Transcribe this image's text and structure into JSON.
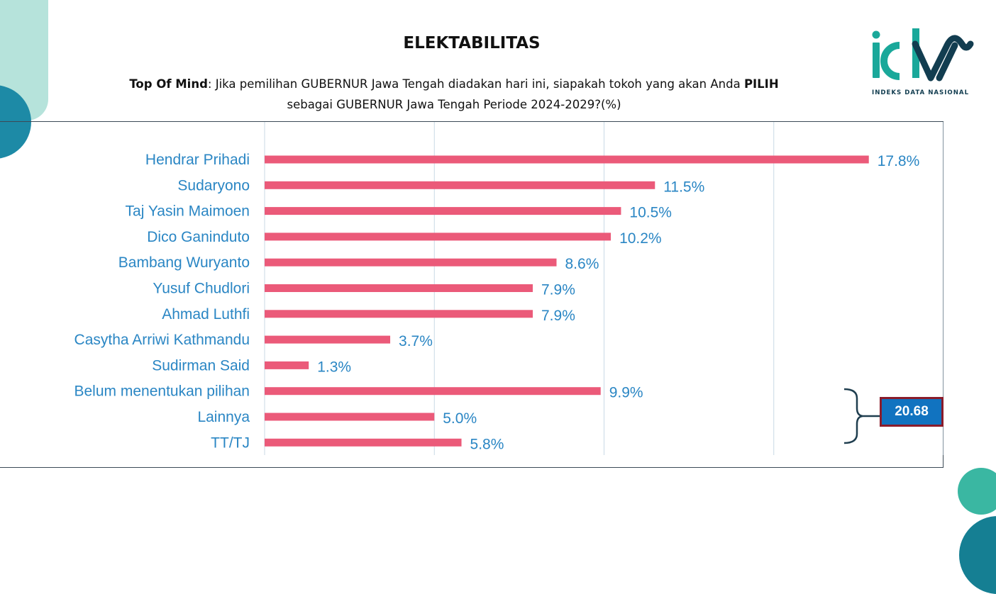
{
  "header": {
    "title": "ELEKTABILITAS",
    "subtitle_bold_1": "Top Of Mind",
    "subtitle_part_1": ": Jika pemilihan GUBERNUR Jawa Tengah diadakan hari ini, siapakah tokoh yang akan Anda ",
    "subtitle_bold_2": "PILIH",
    "subtitle_part_2": "sebagai GUBERNUR Jawa Tengah Periode 2024-2029?(%)"
  },
  "logo": {
    "text": "INDEKS DATA NASIONAL",
    "colors": {
      "teal": "#1aa89a",
      "navy": "#123d50"
    }
  },
  "annotation": {
    "total_label": "20.68",
    "box_color": "#1173c0",
    "box_border": "#8a1c2b"
  },
  "colors": {
    "bar": "#eb5a79",
    "label": "#2a86c4",
    "grid": "#c9d9e6"
  },
  "chart_data": {
    "type": "bar",
    "orientation": "horizontal",
    "categories": [
      "Hendrar Prihadi",
      "Sudaryono",
      "Taj Yasin Maimoen",
      "Dico Ganinduto",
      "Bambang Wuryanto",
      "Yusuf Chudlori",
      "Ahmad Luthfi",
      "Casytha Arriwi Kathmandu",
      "Sudirman Said",
      "Belum menentukan pilihan",
      "Lainnya",
      "TT/TJ"
    ],
    "values": [
      17.8,
      11.5,
      10.5,
      10.2,
      8.6,
      7.9,
      7.9,
      3.7,
      1.3,
      9.9,
      5.0,
      5.8
    ],
    "value_labels": [
      "17.8%",
      "11.5%",
      "10.5%",
      "10.2%",
      "8.6%",
      "7.9%",
      "7.9%",
      "3.7%",
      "1.3%",
      "9.9%",
      "5.0%",
      "5.8%"
    ],
    "xlim": [
      0,
      20
    ],
    "grid": true,
    "legend": "none"
  }
}
